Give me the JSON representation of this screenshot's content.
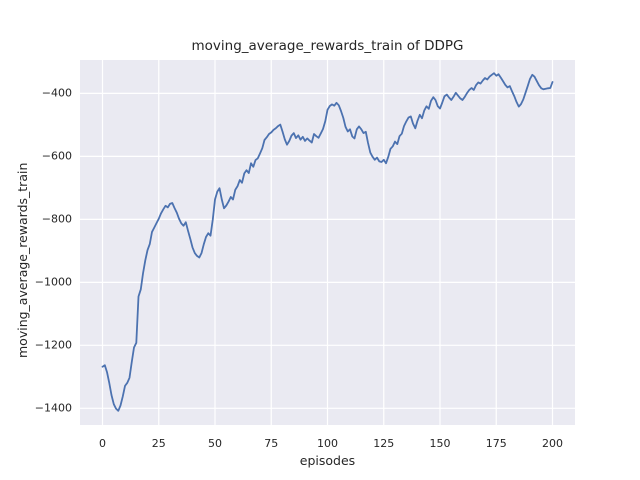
{
  "chart_data": {
    "type": "line",
    "title": "moving_average_rewards_train of DDPG",
    "xlabel": "episodes",
    "ylabel": "moving_average_rewards_train",
    "xticks": [
      0,
      25,
      50,
      75,
      100,
      125,
      150,
      175,
      200
    ],
    "yticks": [
      -400,
      -600,
      -800,
      -1000,
      -1200,
      -1400
    ],
    "xlim": [
      -10,
      210
    ],
    "ylim": [
      -1453,
      -294
    ],
    "grid": true,
    "legend": false,
    "colors": {
      "figure_background": "#ffffff",
      "axes_background": "#eaeaf2",
      "grid": "#ffffff",
      "line": "#4c72b0",
      "text": "#262626"
    },
    "series": [
      {
        "name": "moving_average_rewards_train",
        "color": "#4c72b0",
        "points": [
          [
            0,
            -1268
          ],
          [
            1,
            -1263
          ],
          [
            2,
            -1285
          ],
          [
            3,
            -1320
          ],
          [
            4,
            -1358
          ],
          [
            5,
            -1387
          ],
          [
            6,
            -1401
          ],
          [
            7,
            -1408
          ],
          [
            8,
            -1391
          ],
          [
            9,
            -1362
          ],
          [
            10,
            -1329
          ],
          [
            11,
            -1319
          ],
          [
            12,
            -1303
          ],
          [
            13,
            -1252
          ],
          [
            14,
            -1207
          ],
          [
            15,
            -1192
          ],
          [
            16,
            -1045
          ],
          [
            17,
            -1022
          ],
          [
            18,
            -972
          ],
          [
            19,
            -930
          ],
          [
            20,
            -898
          ],
          [
            21,
            -878
          ],
          [
            22,
            -840
          ],
          [
            23,
            -826
          ],
          [
            24,
            -812
          ],
          [
            25,
            -798
          ],
          [
            26,
            -781
          ],
          [
            27,
            -768
          ],
          [
            28,
            -757
          ],
          [
            29,
            -762
          ],
          [
            30,
            -751
          ],
          [
            31,
            -748
          ],
          [
            32,
            -764
          ],
          [
            33,
            -779
          ],
          [
            34,
            -798
          ],
          [
            35,
            -813
          ],
          [
            36,
            -820
          ],
          [
            37,
            -809
          ],
          [
            38,
            -836
          ],
          [
            39,
            -862
          ],
          [
            40,
            -889
          ],
          [
            41,
            -907
          ],
          [
            42,
            -916
          ],
          [
            43,
            -921
          ],
          [
            44,
            -907
          ],
          [
            45,
            -879
          ],
          [
            46,
            -856
          ],
          [
            47,
            -844
          ],
          [
            48,
            -852
          ],
          [
            49,
            -800
          ],
          [
            50,
            -737
          ],
          [
            51,
            -712
          ],
          [
            52,
            -701
          ],
          [
            53,
            -737
          ],
          [
            54,
            -765
          ],
          [
            55,
            -756
          ],
          [
            56,
            -744
          ],
          [
            57,
            -729
          ],
          [
            58,
            -737
          ],
          [
            59,
            -706
          ],
          [
            60,
            -695
          ],
          [
            61,
            -675
          ],
          [
            62,
            -684
          ],
          [
            63,
            -654
          ],
          [
            64,
            -644
          ],
          [
            65,
            -653
          ],
          [
            66,
            -622
          ],
          [
            67,
            -633
          ],
          [
            68,
            -612
          ],
          [
            69,
            -606
          ],
          [
            70,
            -591
          ],
          [
            71,
            -574
          ],
          [
            72,
            -548
          ],
          [
            73,
            -539
          ],
          [
            74,
            -529
          ],
          [
            75,
            -524
          ],
          [
            76,
            -516
          ],
          [
            77,
            -511
          ],
          [
            78,
            -504
          ],
          [
            79,
            -499
          ],
          [
            80,
            -521
          ],
          [
            81,
            -546
          ],
          [
            82,
            -563
          ],
          [
            83,
            -551
          ],
          [
            84,
            -534
          ],
          [
            85,
            -526
          ],
          [
            86,
            -542
          ],
          [
            87,
            -533
          ],
          [
            88,
            -547
          ],
          [
            89,
            -538
          ],
          [
            90,
            -551
          ],
          [
            91,
            -543
          ],
          [
            92,
            -550
          ],
          [
            93,
            -556
          ],
          [
            94,
            -529
          ],
          [
            95,
            -536
          ],
          [
            96,
            -541
          ],
          [
            97,
            -527
          ],
          [
            98,
            -513
          ],
          [
            99,
            -488
          ],
          [
            100,
            -452
          ],
          [
            101,
            -440
          ],
          [
            102,
            -435
          ],
          [
            103,
            -439
          ],
          [
            104,
            -430
          ],
          [
            105,
            -438
          ],
          [
            106,
            -456
          ],
          [
            107,
            -478
          ],
          [
            108,
            -506
          ],
          [
            109,
            -521
          ],
          [
            110,
            -514
          ],
          [
            111,
            -537
          ],
          [
            112,
            -543
          ],
          [
            113,
            -514
          ],
          [
            114,
            -505
          ],
          [
            115,
            -514
          ],
          [
            116,
            -526
          ],
          [
            117,
            -522
          ],
          [
            118,
            -557
          ],
          [
            119,
            -588
          ],
          [
            120,
            -601
          ],
          [
            121,
            -611
          ],
          [
            122,
            -604
          ],
          [
            123,
            -616
          ],
          [
            124,
            -618
          ],
          [
            125,
            -611
          ],
          [
            126,
            -622
          ],
          [
            127,
            -601
          ],
          [
            128,
            -576
          ],
          [
            129,
            -568
          ],
          [
            130,
            -553
          ],
          [
            131,
            -561
          ],
          [
            132,
            -536
          ],
          [
            133,
            -528
          ],
          [
            134,
            -504
          ],
          [
            135,
            -489
          ],
          [
            136,
            -477
          ],
          [
            137,
            -473
          ],
          [
            138,
            -496
          ],
          [
            139,
            -511
          ],
          [
            140,
            -487
          ],
          [
            141,
            -468
          ],
          [
            142,
            -479
          ],
          [
            143,
            -454
          ],
          [
            144,
            -441
          ],
          [
            145,
            -449
          ],
          [
            146,
            -424
          ],
          [
            147,
            -412
          ],
          [
            148,
            -421
          ],
          [
            149,
            -441
          ],
          [
            150,
            -448
          ],
          [
            151,
            -429
          ],
          [
            152,
            -409
          ],
          [
            153,
            -404
          ],
          [
            154,
            -413
          ],
          [
            155,
            -421
          ],
          [
            156,
            -411
          ],
          [
            157,
            -398
          ],
          [
            158,
            -407
          ],
          [
            159,
            -416
          ],
          [
            160,
            -421
          ],
          [
            161,
            -411
          ],
          [
            162,
            -399
          ],
          [
            163,
            -389
          ],
          [
            164,
            -383
          ],
          [
            165,
            -389
          ],
          [
            166,
            -374
          ],
          [
            167,
            -365
          ],
          [
            168,
            -369
          ],
          [
            169,
            -359
          ],
          [
            170,
            -351
          ],
          [
            171,
            -356
          ],
          [
            172,
            -347
          ],
          [
            173,
            -341
          ],
          [
            174,
            -336
          ],
          [
            175,
            -344
          ],
          [
            176,
            -339
          ],
          [
            177,
            -350
          ],
          [
            178,
            -361
          ],
          [
            179,
            -373
          ],
          [
            180,
            -381
          ],
          [
            181,
            -377
          ],
          [
            182,
            -393
          ],
          [
            183,
            -409
          ],
          [
            184,
            -427
          ],
          [
            185,
            -442
          ],
          [
            186,
            -434
          ],
          [
            187,
            -419
          ],
          [
            188,
            -398
          ],
          [
            189,
            -376
          ],
          [
            190,
            -354
          ],
          [
            191,
            -341
          ],
          [
            192,
            -347
          ],
          [
            193,
            -361
          ],
          [
            194,
            -374
          ],
          [
            195,
            -384
          ],
          [
            196,
            -387
          ],
          [
            197,
            -385
          ],
          [
            198,
            -384
          ],
          [
            199,
            -383
          ],
          [
            200,
            -364
          ]
        ]
      }
    ]
  }
}
